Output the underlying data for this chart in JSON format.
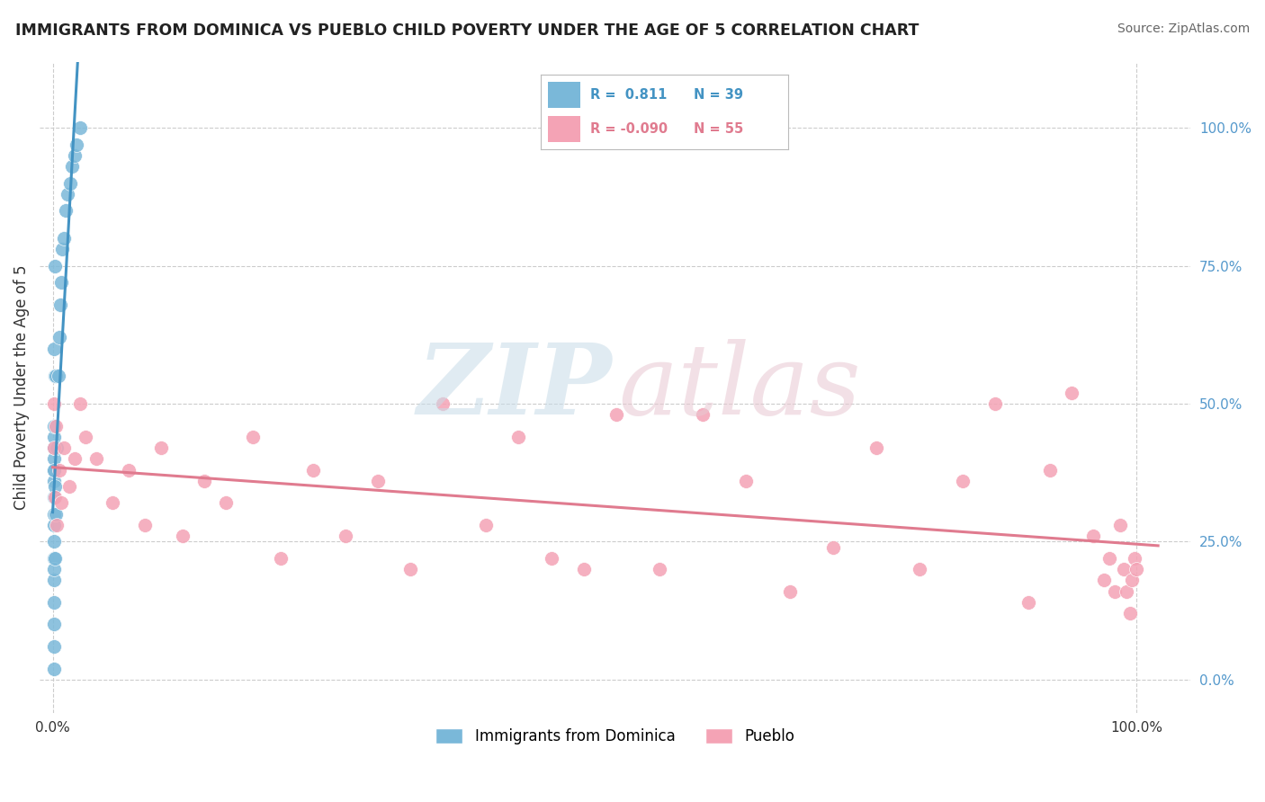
{
  "title": "IMMIGRANTS FROM DOMINICA VS PUEBLO CHILD POVERTY UNDER THE AGE OF 5 CORRELATION CHART",
  "source": "Source: ZipAtlas.com",
  "ylabel": "Child Poverty Under the Age of 5",
  "y_tick_values": [
    0.0,
    0.25,
    0.5,
    0.75,
    1.0
  ],
  "series1_label": "Immigrants from Dominica",
  "series2_label": "Pueblo",
  "legend_r1": "0.811",
  "legend_n1": "39",
  "legend_r2": "-0.090",
  "legend_n2": "55",
  "series1_color": "#7ab8d9",
  "series2_color": "#f4a3b5",
  "trendline1_color": "#4393c3",
  "trendline2_color": "#e07b8f",
  "background_color": "#ffffff",
  "blue_points_x": [
    0.001,
    0.001,
    0.001,
    0.001,
    0.001,
    0.001,
    0.001,
    0.001,
    0.001,
    0.001,
    0.001,
    0.001,
    0.001,
    0.001,
    0.001,
    0.001,
    0.0015,
    0.0015,
    0.0015,
    0.002,
    0.002,
    0.002,
    0.002,
    0.003,
    0.003,
    0.004,
    0.005,
    0.006,
    0.007,
    0.008,
    0.009,
    0.01,
    0.012,
    0.014,
    0.016,
    0.018,
    0.02,
    0.022,
    0.025
  ],
  "blue_points_y": [
    0.02,
    0.06,
    0.1,
    0.14,
    0.18,
    0.22,
    0.25,
    0.28,
    0.3,
    0.33,
    0.36,
    0.38,
    0.4,
    0.42,
    0.44,
    0.46,
    0.2,
    0.38,
    0.6,
    0.22,
    0.35,
    0.55,
    0.75,
    0.3,
    0.55,
    0.42,
    0.55,
    0.62,
    0.68,
    0.72,
    0.78,
    0.8,
    0.85,
    0.88,
    0.9,
    0.93,
    0.95,
    0.97,
    1.0
  ],
  "pink_points_x": [
    0.001,
    0.001,
    0.002,
    0.003,
    0.004,
    0.006,
    0.008,
    0.01,
    0.015,
    0.02,
    0.025,
    0.03,
    0.04,
    0.055,
    0.07,
    0.085,
    0.1,
    0.12,
    0.14,
    0.16,
    0.185,
    0.21,
    0.24,
    0.27,
    0.3,
    0.33,
    0.36,
    0.4,
    0.43,
    0.46,
    0.49,
    0.52,
    0.56,
    0.6,
    0.64,
    0.68,
    0.72,
    0.76,
    0.8,
    0.84,
    0.87,
    0.9,
    0.92,
    0.94,
    0.96,
    0.97,
    0.975,
    0.98,
    0.985,
    0.988,
    0.991,
    0.994,
    0.996,
    0.998,
    1.0
  ],
  "pink_points_y": [
    0.42,
    0.5,
    0.33,
    0.46,
    0.28,
    0.38,
    0.32,
    0.42,
    0.35,
    0.4,
    0.5,
    0.44,
    0.4,
    0.32,
    0.38,
    0.28,
    0.42,
    0.26,
    0.36,
    0.32,
    0.44,
    0.22,
    0.38,
    0.26,
    0.36,
    0.2,
    0.5,
    0.28,
    0.44,
    0.22,
    0.2,
    0.48,
    0.2,
    0.48,
    0.36,
    0.16,
    0.24,
    0.42,
    0.2,
    0.36,
    0.5,
    0.14,
    0.38,
    0.52,
    0.26,
    0.18,
    0.22,
    0.16,
    0.28,
    0.2,
    0.16,
    0.12,
    0.18,
    0.22,
    0.2
  ]
}
